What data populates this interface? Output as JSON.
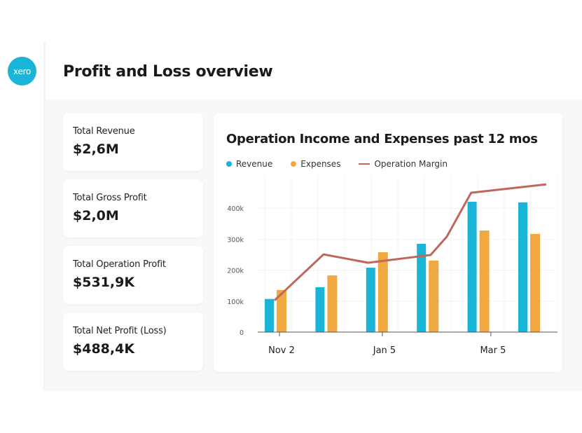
{
  "logo": "xero",
  "title": "Profit and Loss overview",
  "cards": [
    {
      "label": "Total Revenue",
      "value": "$2,6M"
    },
    {
      "label": "Total Gross Profit",
      "value": "$2,0M"
    },
    {
      "label": "Total Operation Profit",
      "value": "$531,9K"
    },
    {
      "label": "Total Net Profit (Loss)",
      "value": "$488,4K"
    }
  ],
  "colors": {
    "revenue": "#1ab4d7",
    "expenses": "#f0a840",
    "margin": "#c0665a"
  },
  "chart_data": {
    "type": "bar",
    "title": "Operation Income and Expenses past 12 mos",
    "legend": [
      "Revenue",
      "Expenses",
      "Operation Margin"
    ],
    "legend_position": "top-left",
    "ylim": [
      0,
      420000
    ],
    "yticks": [
      0,
      100000,
      200000,
      300000,
      400000
    ],
    "ytick_labels": [
      "0",
      "100k",
      "200k",
      "300k",
      "400k"
    ],
    "xtick_positions": [
      0,
      2.03,
      4.17
    ],
    "xtick_labels": [
      "Nov 2",
      "Jan 5",
      "Mar 5"
    ],
    "series": [
      {
        "name": "Revenue",
        "type": "bar",
        "values": [
          107000,
          145000,
          208000,
          285000,
          421000,
          419000
        ]
      },
      {
        "name": "Expenses",
        "type": "bar",
        "values": [
          136000,
          183000,
          258000,
          231000,
          328000,
          317000
        ]
      },
      {
        "name": "Operation Margin",
        "type": "line",
        "x": [
          -0.1,
          0.87,
          1.75,
          2.98,
          3.3,
          3.78,
          5.26
        ],
        "values": [
          102000,
          251000,
          224000,
          249000,
          308000,
          450000,
          477000
        ]
      }
    ]
  }
}
